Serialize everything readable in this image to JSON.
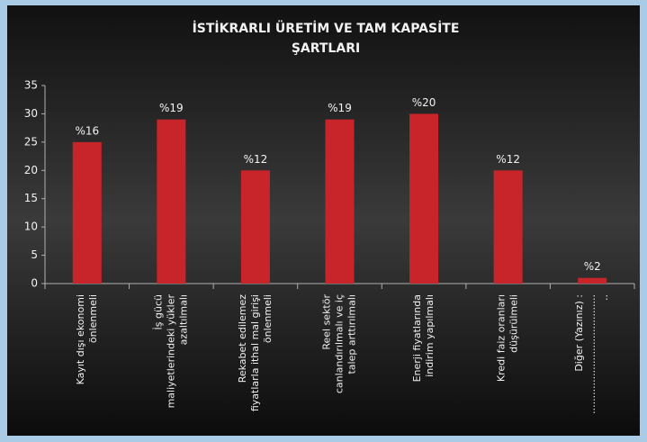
{
  "chart_data": {
    "type": "bar",
    "title": [
      "İSTİKRARLI ÜRETİM VE TAM KAPASİTE",
      "ŞARTLARI"
    ],
    "categories": [
      [
        "Kayıt dışı ekonomi",
        "önlenmeli"
      ],
      [
        "İş gücü",
        "maliyetlerindeki yükler",
        "azaltılmalı"
      ],
      [
        "Rekabet edilemez",
        "fiyatlarla ithal mal girişi",
        "önlenmeli"
      ],
      [
        "Reel sektör",
        "canlandırılmalı ve iç",
        "talep arttırılmalı"
      ],
      [
        "Enerji fiyatlarında",
        "indirim yapılmalı"
      ],
      [
        "Kredi faiz oranları",
        "düşürülmeli"
      ],
      [
        "Diğer (Yazınız) :",
        "......................................",
        ".."
      ]
    ],
    "values": [
      25,
      29,
      20,
      29,
      30,
      20,
      1
    ],
    "annotations": [
      "%16",
      "%19",
      "%12",
      "%19",
      "%20",
      "%12",
      "%2"
    ],
    "color": "#c8252b",
    "ylim": [
      0,
      35
    ],
    "yticks": [
      0,
      5,
      10,
      15,
      20,
      25,
      30,
      35
    ],
    "grid": false
  }
}
